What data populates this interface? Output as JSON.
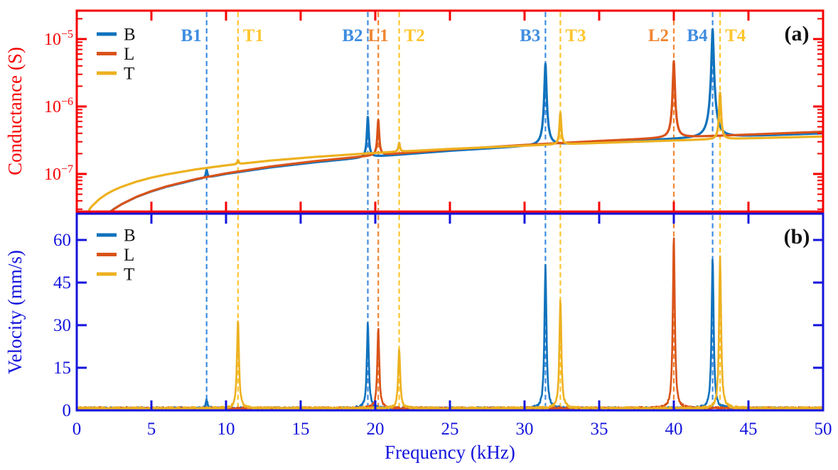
{
  "figure": {
    "background": "#ffffff",
    "description": "Two stacked resonance spectra panels sharing a frequency axis"
  },
  "xaxis": {
    "label": "Frequency (kHz)",
    "min": 0,
    "max": 50,
    "ticks": [
      0,
      5,
      10,
      15,
      20,
      25,
      30,
      35,
      40,
      45,
      50
    ],
    "color": "#1414dd"
  },
  "series_colors": {
    "B": "#0f72bd",
    "L": "#d95319",
    "T": "#edb120"
  },
  "marker_colors": {
    "B": "#3f8ce0",
    "L": "#f08632",
    "T": "#fec52e"
  },
  "legend": {
    "entries": [
      {
        "label": "B"
      },
      {
        "label": "L"
      },
      {
        "label": "T"
      }
    ],
    "position": "top-left"
  },
  "markers": [
    {
      "label": "B1",
      "x": 8.7,
      "series": "B",
      "label_side": "left"
    },
    {
      "label": "T1",
      "x": 10.8,
      "series": "T",
      "label_side": "right"
    },
    {
      "label": "B2",
      "x": 19.5,
      "series": "B",
      "label_side": "left"
    },
    {
      "label": "L1",
      "x": 20.2,
      "series": "L",
      "label_side": "center"
    },
    {
      "label": "T2",
      "x": 21.6,
      "series": "T",
      "label_side": "right"
    },
    {
      "label": "B3",
      "x": 31.4,
      "series": "B",
      "label_side": "left"
    },
    {
      "label": "T3",
      "x": 32.4,
      "series": "T",
      "label_side": "right"
    },
    {
      "label": "L2",
      "x": 40.0,
      "series": "L",
      "label_side": "left"
    },
    {
      "label": "B4",
      "x": 42.6,
      "series": "B",
      "label_side": "left"
    },
    {
      "label": "T4",
      "x": 43.1,
      "series": "T",
      "label_side": "right"
    }
  ],
  "chart_data": [
    {
      "panel": "a",
      "panel_label": "(a)",
      "type": "line",
      "ylabel": "Conductance (S)",
      "yscale": "log",
      "axis_color": "#f50000",
      "ylim": [
        2.77e-08,
        2.63e-05
      ],
      "ytick_exponents": [
        -7,
        -6,
        -5
      ],
      "xlim": [
        0,
        50
      ],
      "grid": false,
      "legend_position": "top-left",
      "series": [
        {
          "name": "B",
          "baseline_x": [
            1.7,
            2,
            2.5,
            3,
            4,
            5,
            6,
            8,
            10,
            13,
            16,
            20,
            25,
            30,
            35,
            40,
            45,
            50
          ],
          "baseline_y": [
            2.18e-08,
            2.5e-08,
            3.03e-08,
            3.55e-08,
            4.55e-08,
            5.5e-08,
            6.44e-08,
            8.25e-08,
            1e-07,
            1.25e-07,
            1.49e-07,
            1.81e-07,
            2.2e-07,
            2.57e-07,
            2.94e-07,
            3.29e-07,
            3.64e-07,
            3.99e-07
          ],
          "peaks": [
            {
              "x": 8.7,
              "y": 1.15e-07
            },
            {
              "x": 19.5,
              "y": 7e-07
            },
            {
              "x": 31.4,
              "y": 4.3e-06
            },
            {
              "x": 42.6,
              "y": 1.4e-05
            }
          ]
        },
        {
          "name": "L",
          "baseline_x": [
            2,
            2.5,
            3,
            4,
            5,
            6,
            8,
            10,
            13,
            16,
            20,
            25,
            30,
            35,
            40,
            45,
            50
          ],
          "baseline_y": [
            2.48e-08,
            3.02e-08,
            3.55e-08,
            4.58e-08,
            5.56e-08,
            6.53e-08,
            8.41e-08,
            1.02e-07,
            1.29e-07,
            1.55e-07,
            1.89e-07,
            2.3e-07,
            2.69e-07,
            3.08e-07,
            3.46e-07,
            3.83e-07,
            4.23e-07
          ],
          "peaks": [
            {
              "x": 20.2,
              "y": 6.3e-07
            },
            {
              "x": 40.0,
              "y": 4.7e-06
            }
          ]
        },
        {
          "name": "T",
          "baseline_x": [
            0.8,
            1,
            1.5,
            2,
            2.5,
            3,
            4,
            5,
            6,
            8,
            10,
            13,
            16,
            20,
            25,
            30,
            35,
            40,
            45,
            50
          ],
          "baseline_y": [
            2.88e-08,
            3.3e-08,
            4.22e-08,
            5.04e-08,
            5.77e-08,
            6.44e-08,
            7.69e-08,
            8.81e-08,
            9.83e-08,
            1.17e-07,
            1.34e-07,
            1.58e-07,
            1.79e-07,
            2.05e-07,
            2.35e-07,
            2.62e-07,
            2.88e-07,
            3.13e-07,
            3.37e-07,
            3.59e-07
          ],
          "peaks": [
            {
              "x": 10.8,
              "y": 1.6e-07
            },
            {
              "x": 21.6,
              "y": 2.9e-07
            },
            {
              "x": 32.4,
              "y": 8e-07
            },
            {
              "x": 43.1,
              "y": 1.6e-06
            }
          ]
        }
      ]
    },
    {
      "panel": "b",
      "panel_label": "(b)",
      "type": "line",
      "ylabel": "Velocity (mm/s)",
      "yscale": "linear",
      "axis_color": "#1414dd",
      "ylim": [
        0,
        69
      ],
      "yticks": [
        0,
        15,
        30,
        45,
        60
      ],
      "xlim": [
        0,
        50
      ],
      "grid": false,
      "noise_floor": 0.7,
      "legend_position": "top-left",
      "series": [
        {
          "name": "B",
          "peaks": [
            {
              "x": 8.7,
              "y": 3.5
            },
            {
              "x": 19.5,
              "y": 31
            },
            {
              "x": 31.4,
              "y": 51
            },
            {
              "x": 42.6,
              "y": 54
            }
          ]
        },
        {
          "name": "L",
          "peaks": [
            {
              "x": 20.2,
              "y": 29
            },
            {
              "x": 40.0,
              "y": 61.5
            }
          ]
        },
        {
          "name": "T",
          "peaks": [
            {
              "x": 10.8,
              "y": 32
            },
            {
              "x": 21.6,
              "y": 22
            },
            {
              "x": 32.4,
              "y": 39
            },
            {
              "x": 43.1,
              "y": 54.5
            }
          ]
        }
      ]
    }
  ]
}
